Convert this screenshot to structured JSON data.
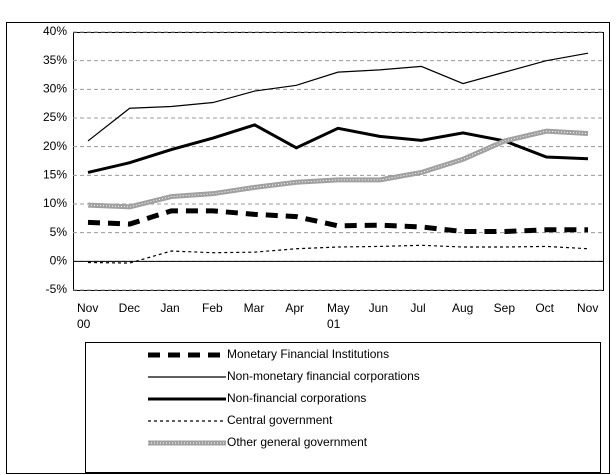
{
  "chart_data": {
    "type": "line",
    "categories": [
      "Nov 00",
      "Dec",
      "Jan",
      "Feb",
      "Mar",
      "Apr",
      "May 01",
      "Jun",
      "Jul",
      "Aug",
      "Sep",
      "Oct",
      "Nov"
    ],
    "ylim": [
      -5,
      40
    ],
    "yticks": [
      {
        "value": -5,
        "label": "-5%"
      },
      {
        "value": 0,
        "label": "0%"
      },
      {
        "value": 5,
        "label": "5%"
      },
      {
        "value": 10,
        "label": "10%"
      },
      {
        "value": 15,
        "label": "15%"
      },
      {
        "value": 20,
        "label": "20%"
      },
      {
        "value": 25,
        "label": "25%"
      },
      {
        "value": 30,
        "label": "30%"
      },
      {
        "value": 35,
        "label": "35%"
      },
      {
        "value": 40,
        "label": "40%"
      }
    ],
    "grid": true,
    "series": [
      {
        "name": "Monetary Financial Institutions",
        "color": "#000000",
        "width": 5,
        "dash": "dashed",
        "values": [
          6.8,
          6.5,
          8.8,
          8.8,
          8.2,
          7.8,
          6.2,
          6.3,
          6.0,
          5.2,
          5.2,
          5.5,
          5.5
        ]
      },
      {
        "name": "Non-monetary financial corporations",
        "color": "#000000",
        "width": 1.2,
        "dash": "solid",
        "values": [
          21,
          26.7,
          27,
          27.7,
          29.7,
          30.7,
          33,
          33.4,
          34,
          31,
          33,
          35,
          36.3
        ]
      },
      {
        "name": "Non-financial corporations",
        "color": "#000000",
        "width": 3,
        "dash": "solid",
        "values": [
          15.5,
          17.2,
          19.5,
          21.5,
          23.8,
          19.8,
          23.2,
          21.8,
          21.1,
          22.4,
          21,
          18.2,
          17.9
        ]
      },
      {
        "name": "Central government",
        "color": "#000000",
        "width": 1.2,
        "dash": "dotted",
        "values": [
          -0.2,
          -0.3,
          1.8,
          1.5,
          1.6,
          2.2,
          2.5,
          2.6,
          2.8,
          2.5,
          2.5,
          2.6,
          2.2
        ]
      },
      {
        "name": "Other general government",
        "color": "#a0a0a0",
        "width": 5,
        "dash": "hatched",
        "values": [
          9.8,
          9.5,
          11.3,
          11.8,
          12.9,
          13.8,
          14.2,
          14.2,
          15.5,
          17.8,
          21,
          22.7,
          22.3
        ]
      }
    ]
  }
}
